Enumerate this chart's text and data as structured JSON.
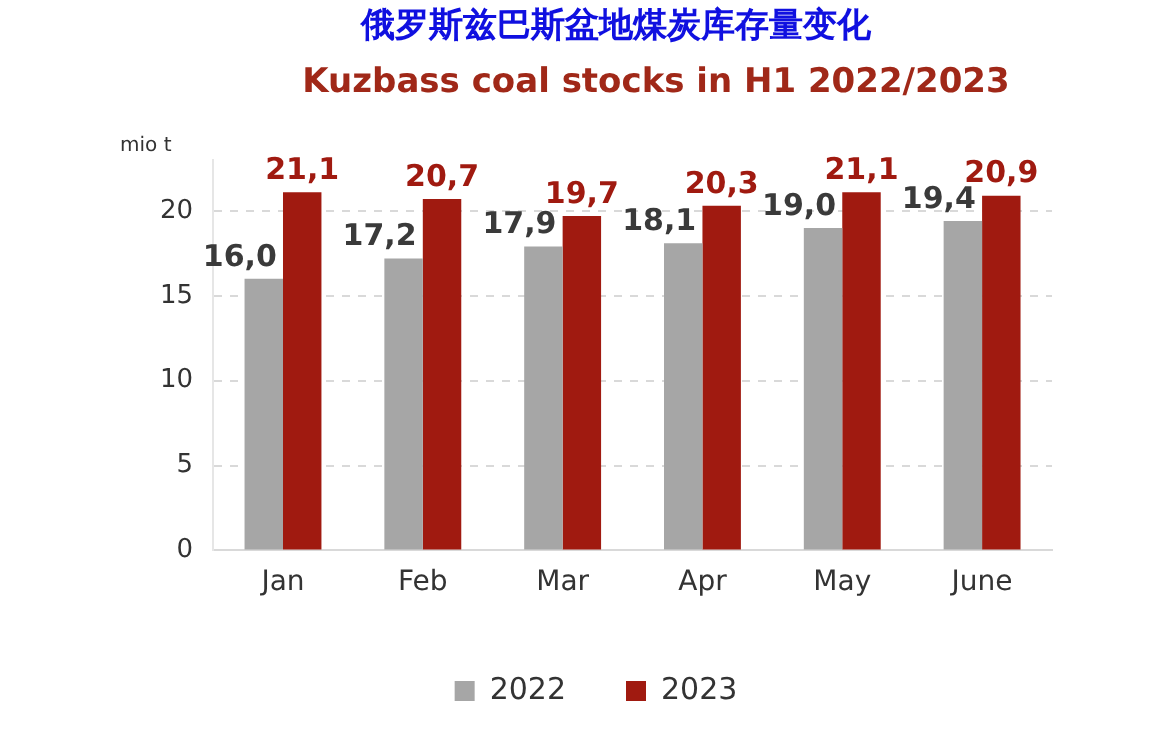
{
  "chart_data": {
    "type": "bar",
    "title": "俄罗斯兹巴斯盆地煤炭库存量变化",
    "subtitle": "Kuzbass coal stocks in H1 2022/2023",
    "ylabel": "mio t",
    "categories": [
      "Jan",
      "Feb",
      "Mar",
      "Apr",
      "May",
      "June"
    ],
    "series": [
      {
        "name": "2022",
        "color": "#a6a6a6",
        "values": [
          16.0,
          17.2,
          17.9,
          18.1,
          19.0,
          19.4
        ],
        "value_labels": [
          "16,0",
          "17,2",
          "17,9",
          "18,1",
          "19,0",
          "19,4"
        ]
      },
      {
        "name": "2023",
        "color": "#a01a10",
        "values": [
          21.1,
          20.7,
          19.7,
          20.3,
          21.1,
          20.9
        ],
        "value_labels": [
          "21,1",
          "20,7",
          "19,7",
          "20,3",
          "21,1",
          "20,9"
        ]
      }
    ],
    "ylim": [
      0,
      23
    ],
    "yticks": [
      0,
      5,
      10,
      15,
      20
    ],
    "grid": "y",
    "legend": "bottom"
  }
}
